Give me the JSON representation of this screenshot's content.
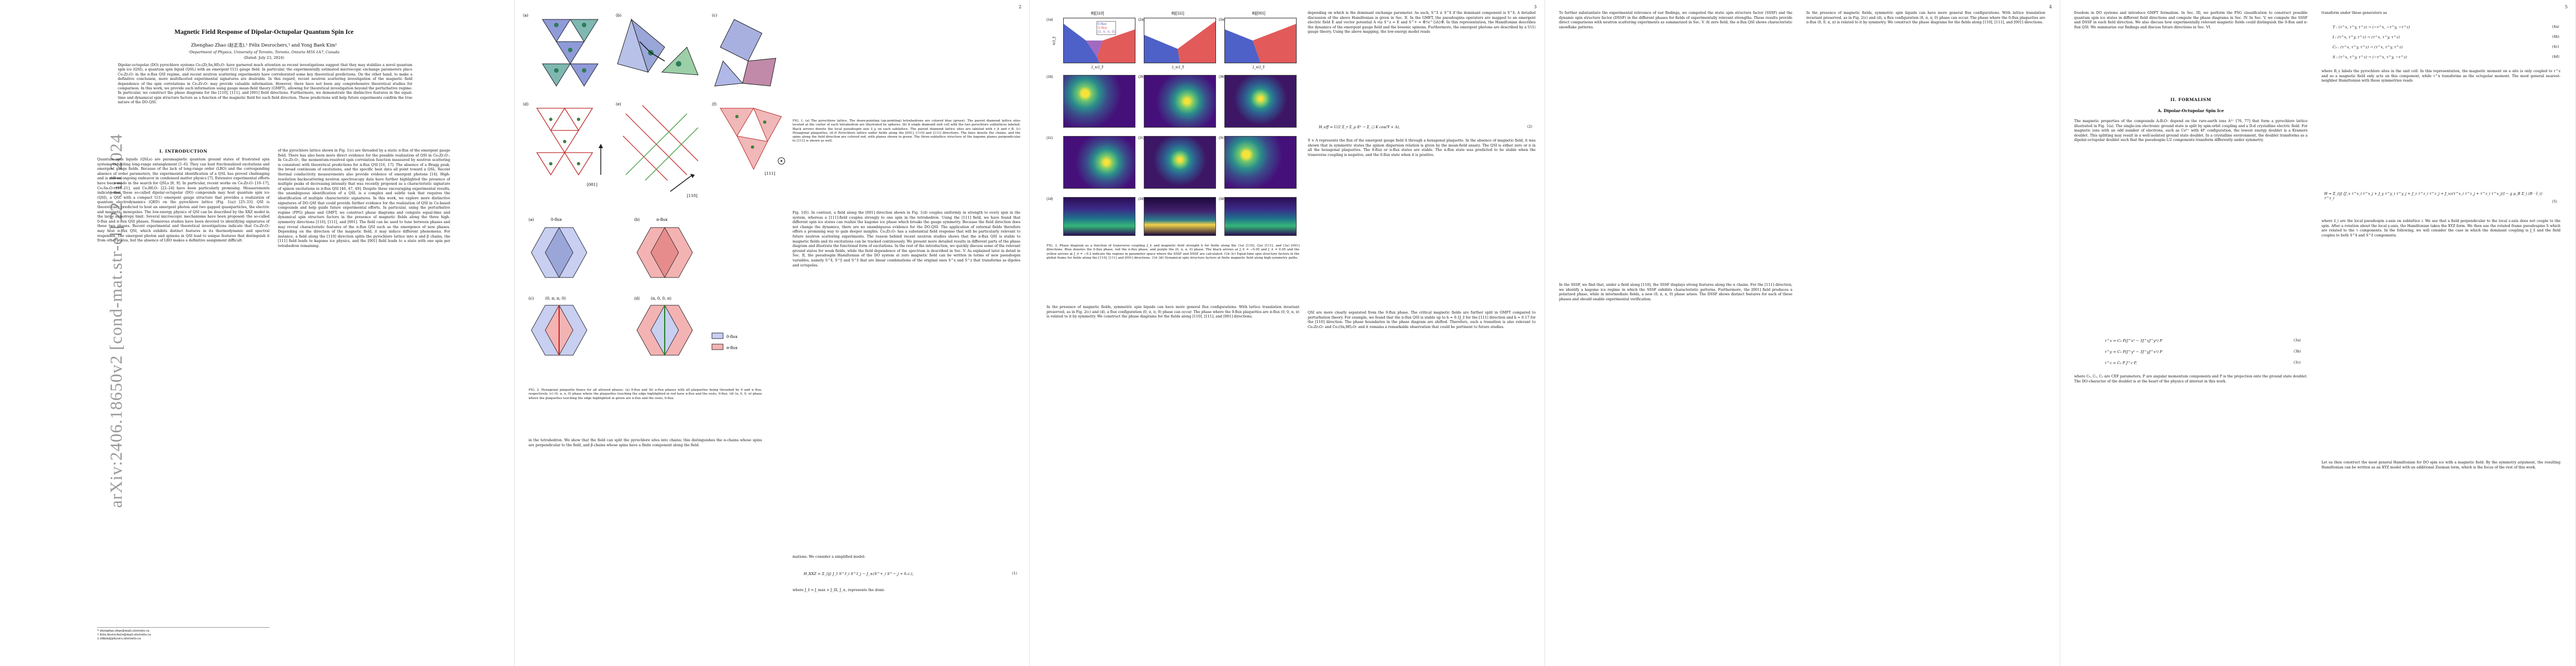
{
  "arxiv_stamp": "arXiv:2406.18650v2  [cond-mat.str-el]  22 Jul 2024",
  "page_numbers": [
    "2",
    "3",
    "4",
    "5"
  ],
  "page1": {
    "title": "Magnetic Field Response of Dipolar-Octupolar Quantum Spin Ice",
    "authors": "Zhenghao Zhao (赵正浩),¹ Félix Desrochers,¹ and Yong Baek Kim¹",
    "affiliation": "¹Department of Physics, University of Toronto, Toronto, Ontario M5S 1A7, Canada",
    "date": "(Dated: July 23, 2024)",
    "abstract": "Dipolar-octupolar (DO) pyrochlore systems Ce₂(Zr,Sn,Hf)₂O₇ have garnered much attention as recent investigations suggest that they may stabilize a novel quantum spin ice (QSI), a quantum spin liquid (QSL) with an emergent U(1) gauge field. In particular, the experimentally estimated microscopic exchange parameters place Ce₂Zr₂O₇ in the π-flux QSI regime, and recent neutron scattering experiments have corroborated some key theoretical predictions. On the other hand, to make a definitive conclusion, more multifaceted experimental signatures are desirable. In this regard, recent neutron scattering investigation of the magnetic field dependence of the spin correlations in Ce₂Zr₂O₇ may provide valuable information. However, there have not been any comprehensive theoretical studies for comparison. In this work, we provide such information using gauge mean-field theory (GMFT), allowing for theoretical investigation beyond the perturbative regime. In particular, we construct the phase diagrams for the [110], [111], and [001] field directions. Furthermore, we demonstrate the distinctive features in the equal-time and dynamical spin structure factors as a function of the magnetic field for each field direction. These predictions will help future experiments confirm the true nature of the DO-QSI.",
    "intro_heading": "I.   INTRODUCTION",
    "intro_col1": "Quantum spin liquids (QSLs) are paramagnetic quantum ground states of frustrated spin systems exhibiting long-range entanglement [1–6]. They can host fractionalized excitations and emergent gauge fields. Because of the lack of long-range order (LRO) and the corresponding absence of order parameters, the experimental identification of a QSL has proved challenging and is still an ongoing endeavor in condensed matter physics [7]. Extensive experimental efforts have been made in the search for QSLs [8, 9]. In particular, recent works on Ce₂Zr₂O₇ [10–17], Ce₂Sn₂O₇ [18–21], and Ce₂Hf₂O₇ [22–24] have been particularly promising. Measurements indicate that these so-called dipolar-octupolar (DO) compounds may host quantum spin ice (QSI), a QSL with a compact U(1) emergent gauge structure that provides a realization of quantum electrodynamics (QED) on the pyrochlore lattice (Fig. 1(a)) [25–33]. QSI is theoretically predicted to host an emergent photon and two gapped quasiparticles, the electric and magnetic monopoles. The low-energy physics of QSI can be described by the XXZ model in the large anisotropy limit. Several microscopic mechanisms have been proposed: the so-called 0-flux and π-flux QSI phases. Numerous studies have been devoted to identifying signatures of these two phases. Recent experimental and theoretical investigations indicate that Ce₂Zr₂O₇ may host π-flux QSI, which exhibits distinct features in its thermodynamic and spectral responses. The emergent photon and spinons in QSI lead to unique features that distinguish it from other states, but the absence of LRO makes a definitive assignment difficult.",
    "intro_col2": "of the pyrochlore lattice shown in Fig. 1(c) are threaded by a static π-flux of the emergent gauge field. There has also been more direct evidence for the possible realization of QSI in Ce₂Zr₂O₇. In Ce₂Zr₂O₇, the momentum-resolved spin correlation function measured by neutron scattering is consistent with theoretical predictions for π-flux QSI [16, 17]. The absence of a Bragg peak, the broad continuum of excitations, and the specific heat data all point toward a QSL. Recent thermal conductivity measurements also provide evidence of emergent photons [14]. High-resolution backscattering neutron spectroscopy data have further highlighted the presence of multiple peaks of decreasing intensity that was recently proposed as a characteristic signature of spinon excitations in π-flux QSI [46, 47, 49]. Despite these encouraging experimental results, the unambiguous identification of a QSL is a complex and subtle task that requires the identification of multiple characteristic signatures. In this work, we explore more distinctive signatures of DO-QSI that could provide further evidence for the realization of QSI in Ce-based compounds and help guide future experimental efforts. In particular, using the perturbative regime (PPG) phase and GMFT, we construct phase diagrams and compute equal-time and dynamical spin structure factors in the presence of magnetic fields along the three high-symmetry directions [110], [111], and [001]. The field can be used to tune between phases and may reveal characteristic features of the π-flux QSI such as the emergence of new phases. Depending on the direction of the magnetic field, it may induce different phenomena. For instance, a field along the [110] direction splits the pyrochlore lattice into α and β chains, the [111] field leads to kagome ice physics, and the [001] field leads to a state with one spin per tetrahedron remaining."
  },
  "fig1": {
    "panel_labels": [
      "(a)",
      "(b)",
      "(c)",
      "(d)",
      "(e)",
      "(f)"
    ],
    "direction_labels": [
      "[001]",
      "[110]",
      "[111]"
    ],
    "caption": "FIG. 1. (a) The pyrochlore lattice. The down-pointing (up-pointing) tetrahedrons are colored blue (green). The parent diamond lattice sites located at the center of each tetrahedron are illustrated by spheres. (b) A single diamond unit cell with the two pyrochlore sublattices labeled. Black arrows denote the local pseudospin axis ẑ_μ on each sublattice. The parent diamond lattice sites are labeled with r_A and r_B. (c) Hexagonal plaquettes. (d–f) Pyrochlore lattice under fields along the [001], [110] and [111] directions. The lines denote the chains, and the spins along the field direction are colored red, with planes shown in green. The three-sublattice structure of the kagome planes perpendicular to [111] is shown as well."
  },
  "fig2": {
    "panel_labels": [
      "(a)",
      "(b)",
      "(c)",
      "(d)"
    ],
    "panel_titles": [
      "0-flux",
      "π-flux",
      "(0, π, π, 0)",
      "(π, 0, 0, π)"
    ],
    "legend": [
      "0-flux",
      "π-flux"
    ],
    "caption": "FIG. 2. Hexagonal plaquette fluxes for all allowed phases. (a) 0-flux and (b) π-flux phases with all plaquettes being threaded by 0 and π flux, respectively. (c) (0, π, π, 0) phase where the plaquettes touching the edge highlighted in red have π-flux and the rests, 0-flux. (d) (π, 0, 0, π) phase where the plaquettes touching the edge highlighted in green are π-flux and the rests, 0-flux."
  },
  "page2": {
    "col1_a": "of the pyrochlore lattice shown in Fig. 1(c) are threaded by a static π-flux of the emergent gauge field.",
    "col2": "Fig. 1(f)). In contrast, a field along the [001] direction shown in Fig. 1(d) couples uniformly in strength to every spin in the system, whereas a [111]-field couples strongly to one spin in the tetrahedron. Using the [111] field, we have found that different spin ice states can realize the kagome ice phase which breaks the gauge symmetry. Because the field direction does not change the dynamics, there are no unambiguous evidence for the DO-QSI. The application of external fields therefore offers a promising way to gain deeper insights. Ce₂Zr₂O₇ has a substantial field response that will be particularly relevant to future neutron scattering experiments. The reason behind recent neutron studies shows that the π-flux QSI is stable to magnetic fields and its excitations can be tracked continuously. We present more detailed results in different parts of the phase diagram and illustrate the functional form of excitations. In the rest of the introduction, we quickly discuss some of the relevant ground states for weak fields, while the field dependence of the spectrum is described in Sec. V. As explained later in detail in Sec. II, the pseudospin Hamiltonian of the DO system at zero magnetic field can be written in terms of new pseudospin variables, namely S^x̃, S^ỹ and S^z̃ that are linear combinations of the original ones S^x and S^z that transforms as dipoles and octupoles.",
    "model_lead": "mations. We consider a simplified model:",
    "eq1": "H_XXZ = Σ_⟨ij⟩ J_z̃ S^z̃_i S^z̃_j − J_±(S^+_i S^−_j + h.c.),",
    "eq1_no": "(1)",
    "after_eq1": "where J_z̃ = J_max > J_z̃z̃, J_±, represents the domi-",
    "p2_col1_rest": "in the tetrahedron. We show that the field can split the pyrochlore sites into chains; this distinguishes the α-chains whose spins are perpendicular to the field, and β-chains whose spins have a finite component along the field."
  },
  "fig3": {
    "column_titles": [
      "B∥[110]",
      "B∥[111]",
      "B∥[001]"
    ],
    "panel_labels": [
      "(1a)",
      "(2a)",
      "(3a)",
      "(1b)",
      "(2b)",
      "(3b)",
      "(1c)",
      "(2c)",
      "(3c)",
      "(1d)",
      "(2d)",
      "(3d)"
    ],
    "legend": [
      "0-flux",
      "π-flux",
      "(0, π, π, 0)"
    ],
    "xlabel": "J_±/J_z̃",
    "ylabel": "h/J_z̃",
    "caption": "FIG. 3. Phase diagram as a function of transverse coupling J_± and magnetic field strength h for fields along the (1a) [110], (2a) [111], and (3a) [001] directions. Blue denotes the 0-flux phase, red the π-flux phase, and purple the (0, π, π, 0) phase. The black arrows at J_± = −0.05 and J_± = 0.05 and the yellow arrows at J_± = −0.2 indicate the regions in parameter space where the SSSF and DSSF are calculated. (1b–3c) Equal-time spin structure factors in the global frame for fields along the [110], [111] and [001] directions. (1d–3d) Dynamical spin structure factors at finite magnetic field along high-symmetry paths."
  },
  "page3": {
    "col2": "depending on which is the dominant exchange parameter. As such, S^z̃ ≡ S^x̃ if the dominant component is S^x̃. A detailed discussion of the above Hamiltonian is given in Sec. II. In the GMFT, the pseudospins operators are mapped to an emergent electric field E and vector potential A via S^z = E and S^+ = Φ†e^{iA}Φ. In this representation, the Hamiltonian describes the dynamics of the emergent gauge field and the bosonic spinons. Furthermore, the emergent photons are described by a U(1) gauge theory. Using the above mapping, the low-energy model reads",
    "eq2": "H_eff = U/2 Σ_r Σ_μ E² − Σ_⬡ K cos(∇ × A),",
    "eq2_no": "(2)",
    "col2_b": "∇ × A represents the flux of the emergent gauge field A through a hexagonal plaquette. In the absence of magnetic field, it was shown that in symmetric states the spinon dispersion relation is given by the mean-field ansatz. The QSI is either zero or π in all the hexagonal plaquettes. The 0-flux or π-flux states are stable. The π-flux state was predicted to be stable when the transverse coupling is negative, and the 0-flux state when it is positive.",
    "col2_c": "In the presence of magnetic fields, symmetric spin liquids can have more general flux configurations. With lattice translation invariant preserved, as in Fig. 2(c) and (d), a flux configuration (0, π, π, 0) phase can occur. The phase where the 0-flux plaquettes are π-flux (0, 0, π, π) is related to it by symmetry. We construct the phase diagrams for the fields along [110], [111], and [001] directions.",
    "col3": "QSI are more clearly separated from the 0-flux phase. The critical magnetic fields are further split in GMFT compared to perturbation theory. For example, we found that the π-flux QSI is stable up to h ≈ 0.1J_z̃ for the [111] direction and h ≈ 0.17 for the [110] direction. The phase boundaries in the phase diagram are shifted. Therefore, such a transition is also relevant to Ce₂Zr₂O₇ and Ce₂(Sn,Hf)₂O₇ and it remains a remarkable observation that could be pertinent to future studies.",
    "col3_b": "To further substantiate the experimental relevance of our findings, we computed the static spin structure factor (SSSF) and the dynamic spin structure factor (DSSF) in the different phases for fields of experimentally relevant strengths. These results provide direct comparisons with neutron scattering experiments as summarized in Sec. V. At zero field, the π-flux QSI shows characteristic snowflake patterns.",
    "col3_c": "In the SSSF, we find that, under a field along [110], the SSSF displays strong features along the α chains. For the [111] direction, we identify a kagome ice regime in which the SSSF exhibits characteristic patterns. Furthermore, the [001] field produces a polarized phase, while in intermediate fields, a new (0, π, π, 0) phase arises. The DSSF shows distinct features for each of these phases and should enable experimental verification."
  },
  "page4": {
    "col1": "freedom in DO systems and introduce GMFT formalism. In Sec. III, we perform the PSG classification to construct possible quantum spin ice states in different field directions and compute the phase diagrams in Sec. IV. In Sec. V, we compute the SSSF and DSSF in each field direction. We also discuss how experimentally relevant magnetic fields could distinguish the 0-flux and π-flux QSI. We summarize our findings and discuss future directions in Sec. VI.",
    "formalism_heading": "II.   FORMALISM",
    "subsec_heading": "A.   Dipolar-Octupolar Spin Ice",
    "col1_b": "The magnetic properties of the compounds A₂B₂O₇ depend on the rare-earth ions A³⁺ [76, 77] that form a pyrochlore lattice illustrated in Fig. 1(a). The single-ion electronic ground state is split by spin-orbit coupling and a D₃d crystalline electric field. For magnetic ions with an odd number of electrons, such as Ce³⁺ with 4f¹ configuration, the lowest energy doublet is a Kramers doublet. This splitting may result in a well-isolated ground state doublet. In a crystalline environment, the doublet transforms as a dipolar-octupolar doublet such that the pseudospin-1/2 components transform differently under symmetry.",
    "eqs": [
      "τ^x = C₀ P(J^x³ − 3J^xJ^y²) P",
      "τ^y = C₁ P(J^y³ − 3J^yJ^x²) P",
      "τ^z = C₂ P J^z P,"
    ],
    "eq_nos": [
      "(3a)",
      "(3b)",
      "(3c)"
    ],
    "col1_c": "where C₀, C₁, C₂ are CEF parameters, P are angular momentum components and P is the projection onto the ground state doublet. The DO-character of the doublet is at the heart of the physics of interest in this work.",
    "col2": "transform under these generators as",
    "col2_eqs": [
      "T : (τ^x, τ^y, τ^z) → (−τ^x, −τ^y, −τ^z)",
      "I : (τ^x, τ^y, τ^z) → (τ^x, τ^y, τ^z)",
      "C₃ : (τ^x, τ^y, τ^z) → (τ^x, τ^y, τ^z)",
      "S : (τ^x, τ^y, τ^z) → (−τ^x, τ^y, −τ^z)"
    ],
    "col2_eq_nos": [
      "(4a)",
      "(4b)",
      "(4c)",
      "(4d)"
    ],
    "col2_b": "where R_z labels the pyrochlore sites in the unit cell. In this representation, the magnetic moment on a site is only coupled to τ^z and so a magnetic field only acts on this component, while τ^x transforms as the octupolar moment. The most general nearest-neighbor Hamiltonian with these symmetries reads",
    "col2_eq": "H = Σ_⟨ij⟩ [J_x τ^x_i τ^x_j + J_y τ^y_i τ^y_j + J_z τ^z_i τ^z_j + J_xz(τ^x_i τ^z_j + τ^z_i τ^x_j)] − g μ_B Σ_i (B · ẑ_i) τ^z_i",
    "col2_eq_no": "(5)",
    "col2_c": "where ẑ_i are the local pseudospin z-axis on sublattice i. We see that a field perpendicular to the local z-axis does not couple to the spin. After a rotation about the local y-axis, the Hamiltonian takes the XYZ form. We then use the rotated frame pseudospins S which are related to the τ components. In the following, we will consider the case in which the dominant coupling is J_z̃ and the field couples to both S^x̃ and S^z̃ components.",
    "col2_d": "Let us then construct the most general Hamiltonian for DO spin ice with a magnetic field. By the symmetry argument, the resulting Hamiltonian can be written as an XYZ model with an additional Zeeman term, which is the focus of the rest of this work."
  },
  "footnotes": [
    "* zhenghao.zhao@mail.utoronto.ca",
    "† felix.desrochers@mail.utoronto.ca",
    "‡ ybkim@physics.utoronto.ca"
  ]
}
